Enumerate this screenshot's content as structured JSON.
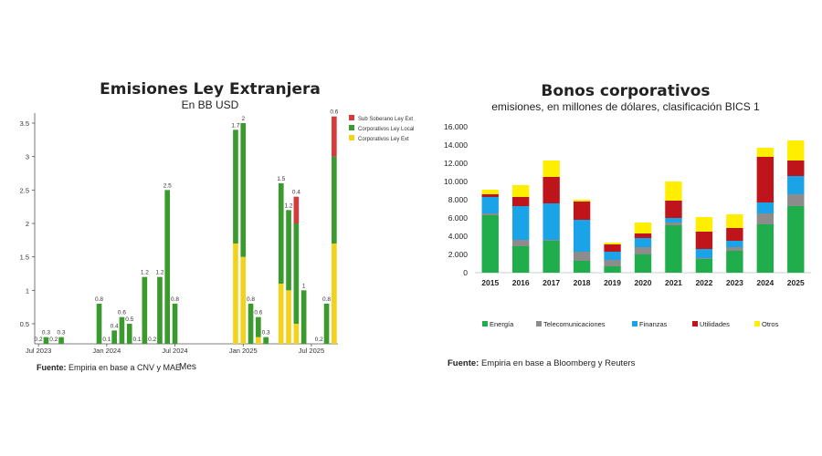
{
  "left": {
    "title": "Emisiones Ley Extranjera",
    "subtitle": "En BB USD",
    "source_label": "Fuente:",
    "source_text": "Empiria en base a CNV y MAE",
    "xaxis_label": "Mes"
  },
  "right": {
    "title": "Bonos corporativos",
    "subtitle": "emisiones, en millones de dólares, clasificación BICS 1",
    "source_label": "Fuente:",
    "source_text": "Empiria en base a Bloomberg y Reuters"
  },
  "chart_data": [
    {
      "type": "bar",
      "stacked": true,
      "title": "Emisiones Ley Extranjera",
      "subtitle": "En BB USD",
      "xlabel": "Mes",
      "ylabel": "",
      "ylim": [
        0.2,
        3.65
      ],
      "yticks": [
        0.5,
        1,
        1.5,
        2,
        2.5,
        3,
        3.5
      ],
      "x_tick_labels": [
        {
          "index": 0,
          "label": "Jul 2023"
        },
        {
          "index": 9,
          "label": "Jan 2024"
        },
        {
          "index": 18,
          "label": "Jul 2024"
        },
        {
          "index": 27,
          "label": "Jan 2025"
        },
        {
          "index": 36,
          "label": "Jul 2025"
        }
      ],
      "legend_position": "top-right",
      "series": [
        {
          "name": "Corporativos Ley Ext",
          "color": "#f2d21b",
          "values": [
            0,
            0,
            0,
            0,
            0,
            0,
            0,
            0,
            0,
            0,
            0,
            0,
            0,
            0,
            0,
            0,
            0,
            0,
            0,
            0,
            0,
            0,
            0,
            0,
            0,
            0,
            1.7,
            1.5,
            0,
            0.3,
            0,
            0,
            1.1,
            1.0,
            0.5,
            0,
            0,
            0,
            0,
            1.7
          ]
        },
        {
          "name": "Corporativos Ley Local",
          "color": "#3a9a2e",
          "values": [
            0.2,
            0.3,
            0.2,
            0.3,
            0,
            0,
            0,
            0,
            0.8,
            0.1,
            0.4,
            0.6,
            0.5,
            0.1,
            1.2,
            0.2,
            1.2,
            2.5,
            0.8,
            0,
            0,
            0,
            0,
            0,
            0,
            0,
            1.7,
            2.0,
            0.8,
            0.3,
            0.3,
            0,
            1.5,
            1.2,
            1.5,
            1,
            0,
            0.2,
            0.8,
            1.3
          ]
        },
        {
          "name": "Sub Soberano Ley Ext",
          "color": "#d63a3a",
          "values": [
            0,
            0,
            0,
            0,
            0,
            0,
            0,
            0,
            0,
            0,
            0,
            0,
            0,
            0,
            0,
            0,
            0,
            0,
            0,
            0,
            0,
            0,
            0,
            0,
            0,
            0,
            0,
            0,
            0,
            0,
            0,
            0,
            0,
            0,
            0.4,
            0,
            0,
            0,
            0,
            0.6
          ]
        }
      ],
      "data_labels": [
        "0.2",
        "0.3",
        "0.2",
        "0.3",
        "0",
        "0",
        "0",
        "0",
        "0.8",
        "0.1",
        "0.4",
        "0.6",
        "0.5",
        "0.1",
        "1.2",
        "0.2",
        "1.2",
        "2.5",
        "0.8",
        "0",
        "0",
        "0",
        "0",
        "0",
        "0",
        "0",
        "1.7",
        "2",
        "0.8",
        "0.6",
        "0.3",
        "0",
        "1.5",
        "1.2",
        "0.4",
        "1",
        "0",
        "0.2",
        "0.8",
        "0.6"
      ]
    },
    {
      "type": "bar",
      "stacked": true,
      "title": "Bonos corporativos",
      "subtitle": "emisiones, en millones de dólares, clasificación BICS 1",
      "xlabel": "",
      "ylabel": "",
      "ylim": [
        0,
        16000
      ],
      "ytick_labels": [
        "0",
        "2.000",
        "4.000",
        "6.000",
        "8.000",
        "10.000",
        "12.000",
        "14.000",
        "16.000"
      ],
      "categories": [
        "2015",
        "2016",
        "2017",
        "2018",
        "2019",
        "2020",
        "2021",
        "2022",
        "2023",
        "2024",
        "2025"
      ],
      "legend_position": "bottom",
      "series": [
        {
          "name": "Energía",
          "color": "#1fae4b",
          "values": [
            6300,
            2900,
            3500,
            1300,
            700,
            2000,
            5200,
            1500,
            2400,
            5300,
            7300
          ]
        },
        {
          "name": "Telecomunicaciones",
          "color": "#8c8c8c",
          "values": [
            200,
            700,
            100,
            1000,
            700,
            800,
            300,
            100,
            400,
            1200,
            1300
          ]
        },
        {
          "name": "Finanzas",
          "color": "#1aa3e6",
          "values": [
            1800,
            3700,
            4000,
            3500,
            900,
            1000,
            500,
            1000,
            700,
            1200,
            2000
          ]
        },
        {
          "name": "Utilidades",
          "color": "#c0141b",
          "values": [
            300,
            1000,
            2900,
            2000,
            800,
            500,
            1900,
            1900,
            1400,
            5000,
            1700
          ]
        },
        {
          "name": "Otros",
          "color": "#ffee00",
          "values": [
            500,
            1300,
            1800,
            200,
            200,
            1200,
            2100,
            1600,
            1500,
            1000,
            2200
          ]
        }
      ]
    }
  ]
}
